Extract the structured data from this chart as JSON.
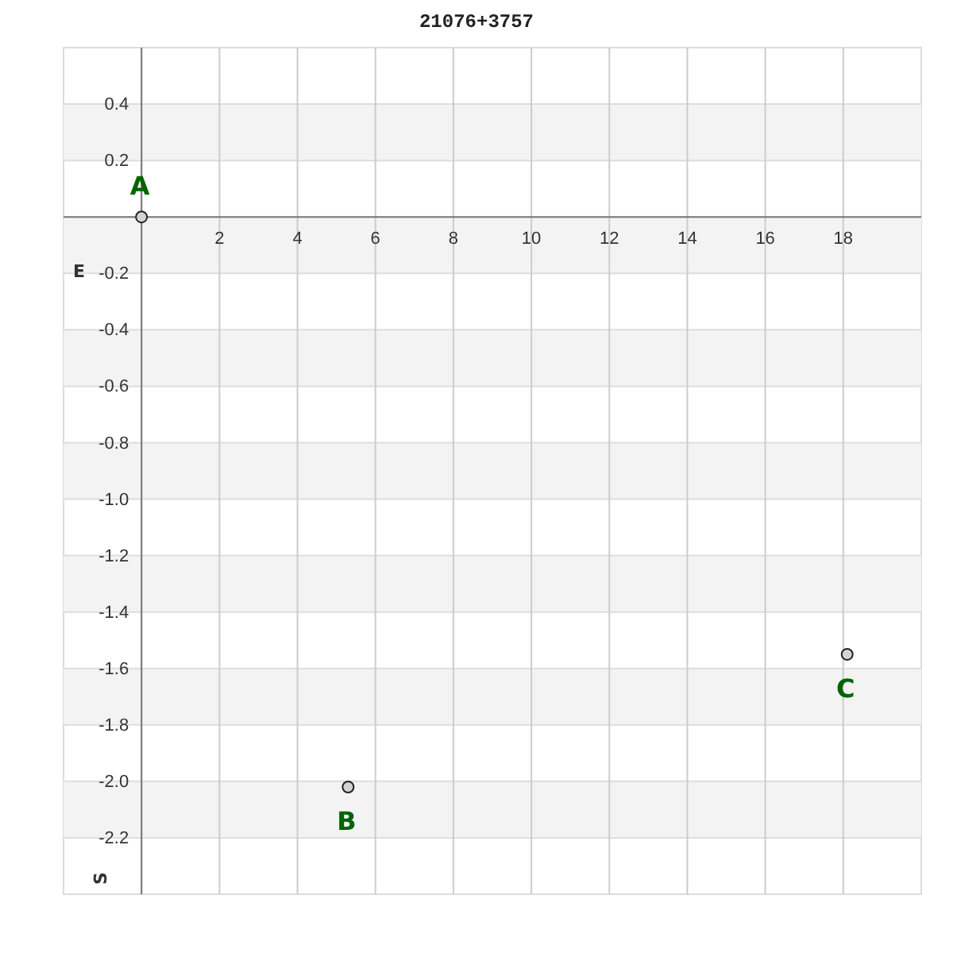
{
  "chart_data": {
    "type": "scatter",
    "title": "21076+3757",
    "xlabel": "E",
    "ylabel": "S",
    "series": [
      {
        "name": "A",
        "color": "#d3d3d3",
        "x": [
          0
        ],
        "values": [
          0
        ]
      },
      {
        "name": "B",
        "color": "#d3d3d3",
        "x": [
          5.3
        ],
        "values": [
          -2.02
        ]
      },
      {
        "name": "C",
        "color": "#d3d3d3",
        "x": [
          18.1
        ],
        "values": [
          -1.55
        ]
      }
    ],
    "xlim": [
      -2,
      20
    ],
    "ylim": [
      -2.4,
      0.6
    ],
    "xticks": [
      {
        "value": 0,
        "label": null
      },
      2,
      4,
      6,
      8,
      10,
      12,
      14,
      16,
      18
    ],
    "yticks": [
      -2.2,
      {
        "value": -2,
        "label": "-2.0"
      },
      -1.8,
      -1.6,
      -1.4,
      -1.2,
      {
        "value": -1,
        "label": "-1.0"
      },
      -0.8,
      -0.6,
      -0.4,
      -0.2,
      {
        "value": 0,
        "label": null
      },
      0.2,
      0.4
    ],
    "grid": true,
    "marker": "circle"
  }
}
